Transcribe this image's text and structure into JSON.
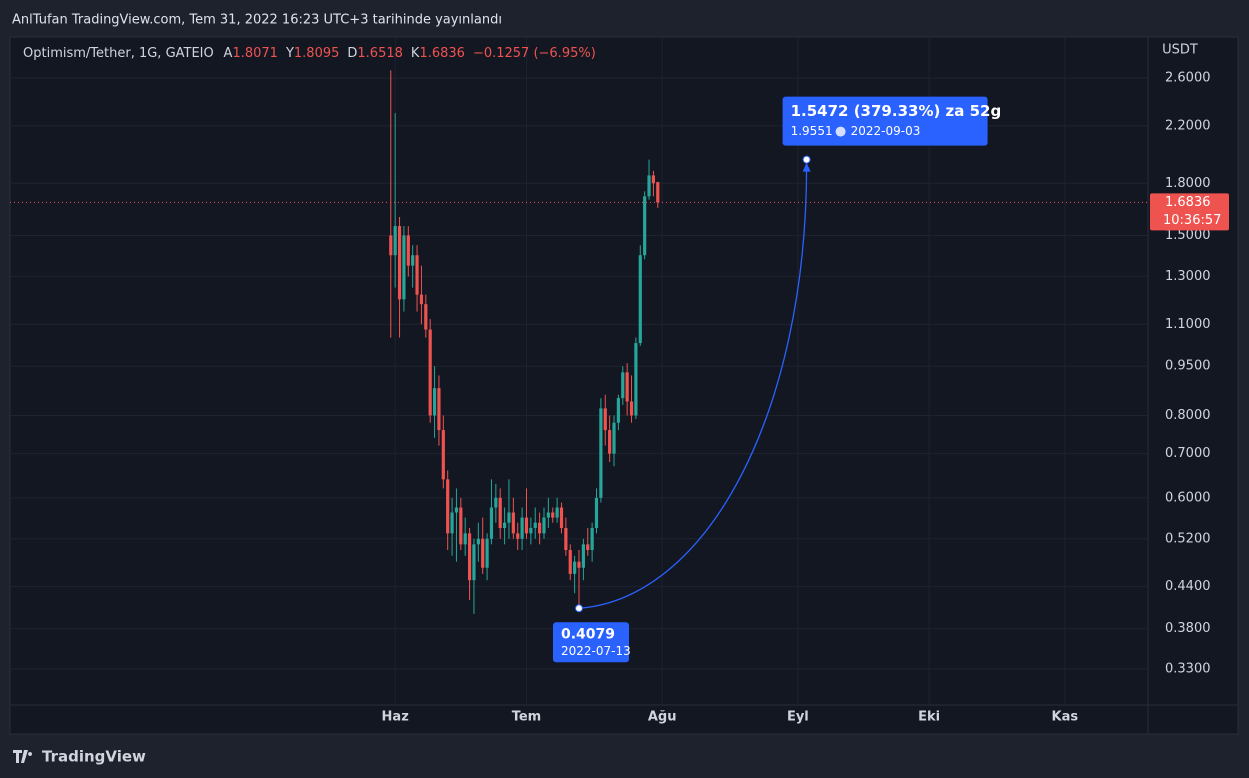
{
  "published": "AnlTufan TradingView.com, Tem 31, 2022 16:23 UTC+3 tarihinde yayınlandı",
  "brand": "TradingView",
  "chart_data": {
    "type": "candlestick",
    "symbol": "Optimism/Tether, 1G, GATEIO",
    "ohlc_labels": [
      "A",
      "Y",
      "D",
      "K"
    ],
    "change_label": "−0.1257 (−6.95%)",
    "currency": "USDT",
    "countdown": "10:36:57",
    "up_color": "#26a69a",
    "down_color": "#ef5350",
    "log_scale": true,
    "grid": true,
    "ylim": [
      0.291,
      3.0
    ],
    "yticks": [
      {
        "value": 2.6,
        "label": "2.6000"
      },
      {
        "value": 2.2,
        "label": "2.2000"
      },
      {
        "value": 1.8,
        "label": "1.8000"
      },
      {
        "value": 1.5,
        "label": "1.5000"
      },
      {
        "value": 1.3,
        "label": "1.3000"
      },
      {
        "value": 1.1,
        "label": "1.1000"
      },
      {
        "value": 0.95,
        "label": "0.9500"
      },
      {
        "value": 0.8,
        "label": "0.8000"
      },
      {
        "value": 0.7,
        "label": "0.7000"
      },
      {
        "value": 0.6,
        "label": "0.6000"
      },
      {
        "value": 0.52,
        "label": "0.5200"
      },
      {
        "value": 0.44,
        "label": "0.4400"
      },
      {
        "value": 0.38,
        "label": "0.3800"
      },
      {
        "value": 0.33,
        "label": "0.3300"
      }
    ],
    "xlim": [
      "2022-03-05",
      "2022-11-20"
    ],
    "xticks": [
      {
        "value": "2022-06-01",
        "label": "Haz"
      },
      {
        "value": "2022-07-01",
        "label": "Tem"
      },
      {
        "value": "2022-08-01",
        "label": "Ağu"
      },
      {
        "value": "2022-09-01",
        "label": "Eyl"
      },
      {
        "value": "2022-10-01",
        "label": "Eki"
      },
      {
        "value": "2022-11-01",
        "label": "Kas"
      }
    ],
    "x": [
      "2022-05-31",
      "2022-06-01",
      "2022-06-02",
      "2022-06-03",
      "2022-06-04",
      "2022-06-05",
      "2022-06-06",
      "2022-06-07",
      "2022-06-08",
      "2022-06-09",
      "2022-06-10",
      "2022-06-11",
      "2022-06-12",
      "2022-06-13",
      "2022-06-14",
      "2022-06-15",
      "2022-06-16",
      "2022-06-17",
      "2022-06-18",
      "2022-06-19",
      "2022-06-20",
      "2022-06-21",
      "2022-06-22",
      "2022-06-23",
      "2022-06-24",
      "2022-06-25",
      "2022-06-26",
      "2022-06-27",
      "2022-06-28",
      "2022-06-29",
      "2022-06-30",
      "2022-07-01",
      "2022-07-02",
      "2022-07-03",
      "2022-07-04",
      "2022-07-05",
      "2022-07-06",
      "2022-07-07",
      "2022-07-08",
      "2022-07-09",
      "2022-07-10",
      "2022-07-11",
      "2022-07-12",
      "2022-07-13",
      "2022-07-14",
      "2022-07-15",
      "2022-07-16",
      "2022-07-17",
      "2022-07-18",
      "2022-07-19",
      "2022-07-20",
      "2022-07-21",
      "2022-07-22",
      "2022-07-23",
      "2022-07-24",
      "2022-07-25",
      "2022-07-26",
      "2022-07-27",
      "2022-07-28",
      "2022-07-29",
      "2022-07-30",
      "2022-07-31"
    ],
    "open": [
      1.5,
      1.4,
      1.55,
      1.2,
      1.5,
      1.35,
      1.4,
      1.22,
      1.18,
      1.08,
      0.8,
      0.88,
      0.76,
      0.64,
      0.53,
      0.57,
      0.58,
      0.51,
      0.53,
      0.45,
      0.51,
      0.52,
      0.47,
      0.52,
      0.58,
      0.6,
      0.54,
      0.55,
      0.57,
      0.53,
      0.52,
      0.56,
      0.53,
      0.54,
      0.55,
      0.53,
      0.56,
      0.57,
      0.56,
      0.58,
      0.54,
      0.5,
      0.46,
      0.48,
      0.47,
      0.51,
      0.5,
      0.54,
      0.6,
      0.82,
      0.76,
      0.7,
      0.78,
      0.85,
      0.93,
      0.84,
      0.8,
      1.03,
      1.4,
      1.72,
      1.85,
      1.8071
    ],
    "high": [
      2.67,
      2.3,
      1.6,
      1.55,
      1.55,
      1.45,
      1.45,
      1.35,
      1.22,
      1.12,
      0.95,
      0.92,
      0.8,
      0.66,
      0.6,
      0.62,
      0.6,
      0.56,
      0.54,
      0.52,
      0.55,
      0.56,
      0.53,
      0.64,
      0.63,
      0.62,
      0.58,
      0.64,
      0.6,
      0.55,
      0.58,
      0.62,
      0.56,
      0.58,
      0.57,
      0.58,
      0.6,
      0.58,
      0.6,
      0.59,
      0.56,
      0.51,
      0.49,
      0.5,
      0.52,
      0.54,
      0.55,
      0.62,
      0.85,
      0.86,
      0.8,
      0.8,
      0.86,
      0.95,
      0.96,
      0.92,
      1.05,
      1.45,
      1.75,
      1.9551,
      1.88,
      1.8095
    ],
    "low": [
      1.05,
      1.25,
      1.05,
      1.15,
      1.3,
      1.25,
      1.15,
      1.1,
      1.05,
      0.78,
      0.74,
      0.72,
      0.62,
      0.5,
      0.49,
      0.48,
      0.5,
      0.49,
      0.42,
      0.4,
      0.48,
      0.46,
      0.45,
      0.51,
      0.55,
      0.52,
      0.51,
      0.52,
      0.52,
      0.5,
      0.5,
      0.52,
      0.51,
      0.52,
      0.51,
      0.52,
      0.54,
      0.55,
      0.55,
      0.53,
      0.49,
      0.45,
      0.43,
      0.4079,
      0.45,
      0.49,
      0.48,
      0.53,
      0.59,
      0.72,
      0.68,
      0.67,
      0.76,
      0.83,
      0.8,
      0.78,
      0.79,
      1.02,
      1.38,
      1.7,
      1.72,
      1.6518
    ],
    "close": [
      1.4,
      1.55,
      1.2,
      1.5,
      1.35,
      1.4,
      1.22,
      1.18,
      1.08,
      0.8,
      0.88,
      0.76,
      0.64,
      0.53,
      0.57,
      0.58,
      0.51,
      0.53,
      0.45,
      0.51,
      0.52,
      0.47,
      0.52,
      0.58,
      0.6,
      0.54,
      0.55,
      0.57,
      0.53,
      0.52,
      0.56,
      0.53,
      0.54,
      0.55,
      0.53,
      0.56,
      0.57,
      0.56,
      0.58,
      0.54,
      0.5,
      0.46,
      0.48,
      0.47,
      0.51,
      0.5,
      0.54,
      0.6,
      0.82,
      0.76,
      0.7,
      0.78,
      0.85,
      0.93,
      0.84,
      0.8,
      1.03,
      1.4,
      1.72,
      1.85,
      1.8,
      1.6836
    ],
    "measure": {
      "label": "1.5472 (379.33%) za 52g",
      "color": "#2962ff",
      "start": {
        "value": 0.4079,
        "date": "2022-07-13"
      },
      "end": {
        "value": 1.9551,
        "date": "2022-09-03"
      }
    }
  }
}
